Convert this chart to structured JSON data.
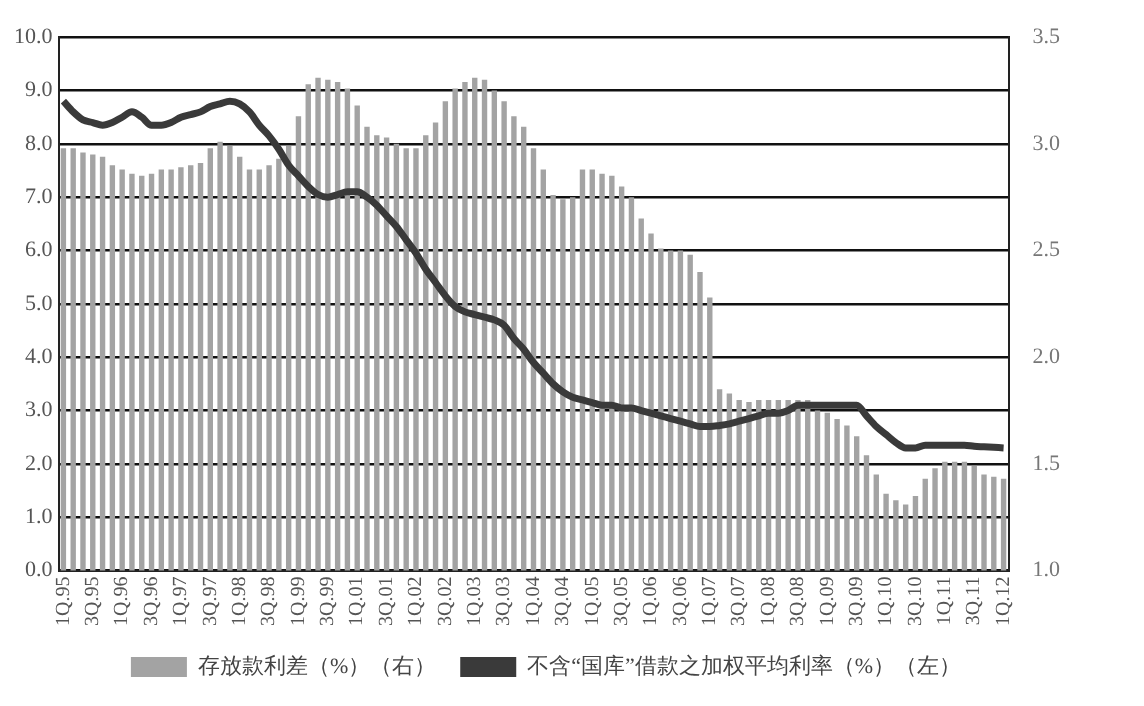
{
  "chart_data": {
    "type": "bar",
    "categories": [
      "1Q.95",
      null,
      null,
      "3Q.95",
      null,
      null,
      "1Q.96",
      null,
      null,
      "3Q.96",
      null,
      null,
      "1Q.97",
      null,
      null,
      "3Q.97",
      null,
      null,
      "1Q.98",
      null,
      null,
      "3Q.98",
      null,
      null,
      "1Q.99",
      null,
      null,
      "3Q.99",
      null,
      null,
      "1Q.01",
      null,
      null,
      "3Q.01",
      null,
      null,
      "1Q.02",
      null,
      null,
      "3Q.02",
      null,
      null,
      "1Q.03",
      null,
      null,
      "3Q.03",
      null,
      null,
      "1Q.04",
      null,
      null,
      "3Q.04",
      null,
      null,
      "1Q.05",
      null,
      null,
      "3Q.05",
      null,
      null,
      "1Q.06",
      null,
      null,
      "3Q.06",
      null,
      null,
      "1Q.07",
      null,
      null,
      "3Q.07",
      null,
      null,
      "1Q.08",
      null,
      null,
      "3Q.08",
      null,
      null,
      "1Q.09",
      null,
      null,
      "3Q.09",
      null,
      null,
      "1Q.10",
      null,
      null,
      "3Q.10",
      null,
      null,
      "1Q.11",
      null,
      null,
      "3Q.11",
      null,
      null,
      "1Q.12"
    ],
    "series": [
      {
        "name": "存放款利差（%）（右）",
        "axis": "y2",
        "color": "#a3a3a3",
        "values": [
          2.98,
          2.98,
          2.96,
          2.95,
          2.94,
          2.9,
          2.88,
          2.86,
          2.85,
          2.86,
          2.88,
          2.88,
          2.89,
          2.9,
          2.91,
          2.98,
          3.01,
          2.99,
          2.94,
          2.88,
          2.88,
          2.9,
          2.93,
          2.99,
          3.13,
          3.28,
          3.31,
          3.3,
          3.29,
          3.26,
          3.18,
          3.08,
          3.04,
          3.03,
          3.0,
          2.98,
          2.98,
          3.04,
          3.1,
          3.2,
          3.26,
          3.29,
          3.31,
          3.3,
          3.25,
          3.2,
          3.13,
          3.08,
          2.98,
          2.88,
          2.76,
          2.74,
          2.75,
          2.88,
          2.88,
          2.86,
          2.85,
          2.8,
          2.75,
          2.65,
          2.58,
          2.51,
          2.5,
          2.5,
          2.48,
          2.4,
          2.28,
          1.85,
          1.83,
          1.8,
          1.79,
          1.8,
          1.8,
          1.8,
          1.8,
          1.8,
          1.8,
          1.75,
          1.74,
          1.71,
          1.68,
          1.63,
          1.54,
          1.45,
          1.36,
          1.33,
          1.31,
          1.35,
          1.43,
          1.48,
          1.51,
          1.51,
          1.51,
          1.49,
          1.45,
          1.44,
          1.43
        ]
      },
      {
        "name": "不含“国库”借款之加权平均利率（%）（左）",
        "type": "line",
        "color": "#3a3a3a",
        "values": [
          8.8,
          8.6,
          8.45,
          8.4,
          8.35,
          8.4,
          8.5,
          8.6,
          8.5,
          8.35,
          8.35,
          8.4,
          8.5,
          8.55,
          8.6,
          8.7,
          8.75,
          8.8,
          8.75,
          8.6,
          8.35,
          8.15,
          7.9,
          7.6,
          7.4,
          7.2,
          7.05,
          7.0,
          7.05,
          7.1,
          7.1,
          7.0,
          6.85,
          6.65,
          6.45,
          6.2,
          5.95,
          5.65,
          5.4,
          5.15,
          4.95,
          4.85,
          4.8,
          4.75,
          4.7,
          4.6,
          4.35,
          4.15,
          3.9,
          3.7,
          3.5,
          3.35,
          3.25,
          3.2,
          3.15,
          3.1,
          3.1,
          3.05,
          3.05,
          3.0,
          2.95,
          2.9,
          2.85,
          2.8,
          2.75,
          2.7,
          2.7,
          2.72,
          2.75,
          2.8,
          2.85,
          2.9,
          2.95,
          2.95,
          3.0,
          3.1,
          3.1,
          3.1,
          3.1,
          3.1,
          3.1,
          3.1,
          2.9,
          2.7,
          2.55,
          2.4,
          2.3,
          2.3,
          2.35,
          2.35,
          2.35,
          2.35,
          2.35,
          2.33,
          2.32,
          2.31,
          2.3
        ]
      }
    ],
    "ylim": [
      0,
      10
    ],
    "yticks": [
      {
        "value": 0,
        "label": "0.0"
      },
      {
        "value": 1,
        "label": "1.0"
      },
      {
        "value": 2,
        "label": "2.0"
      },
      {
        "value": 3,
        "label": "3.0"
      },
      {
        "value": 4,
        "label": "4.0"
      },
      {
        "value": 5,
        "label": "5.0"
      },
      {
        "value": 6,
        "label": "6.0"
      },
      {
        "value": 7,
        "label": "7.0"
      },
      {
        "value": 8,
        "label": "8.0"
      },
      {
        "value": 9,
        "label": "9.0"
      },
      {
        "value": 10,
        "label": "10.0"
      }
    ],
    "y2lim": [
      1,
      3.5
    ],
    "y2ticks": [
      {
        "value": 1,
        "label": "1.0"
      },
      {
        "value": 1.5,
        "label": "1.5"
      },
      {
        "value": 2,
        "label": "2.0"
      },
      {
        "value": 2.5,
        "label": "2.5"
      },
      {
        "value": 3,
        "label": "3.0"
      },
      {
        "value": 3.5,
        "label": "3.5"
      }
    ],
    "grid": "y",
    "legend": "bottom",
    "marker": "none"
  }
}
